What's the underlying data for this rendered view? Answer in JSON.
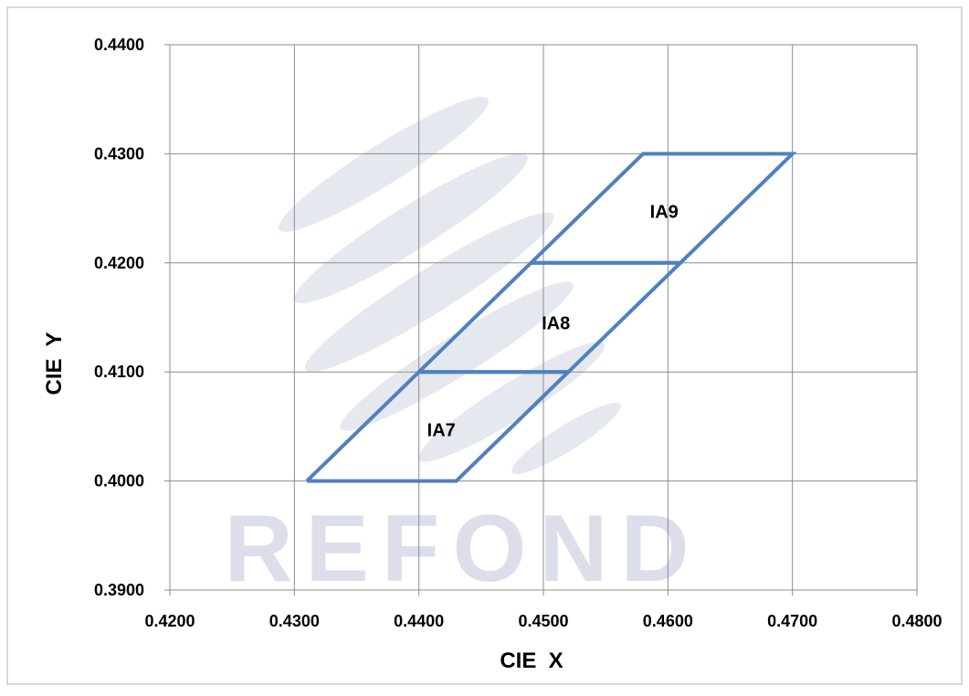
{
  "chart_data": {
    "type": "line",
    "xlabel": "CIE  X",
    "ylabel": "CIE  Y",
    "xlim": [
      0.42,
      0.48
    ],
    "ylim": [
      0.39,
      0.44
    ],
    "x_ticks": [
      "0.4200",
      "0.4300",
      "0.4400",
      "0.4500",
      "0.4600",
      "0.4700",
      "0.4800"
    ],
    "y_ticks": [
      "0.3900",
      "0.4000",
      "0.4100",
      "0.4200",
      "0.4300",
      "0.4400"
    ],
    "grid": true,
    "series_color": "#4F81BD",
    "series": [
      {
        "label": "IA7",
        "label_at": [
          0.4418,
          0.4047
        ],
        "points": [
          [
            0.431,
            0.4
          ],
          [
            0.443,
            0.4
          ],
          [
            0.452,
            0.41
          ],
          [
            0.44,
            0.41
          ],
          [
            0.431,
            0.4
          ]
        ]
      },
      {
        "label": "IA8",
        "label_at": [
          0.451,
          0.4145
        ],
        "points": [
          [
            0.44,
            0.41
          ],
          [
            0.452,
            0.41
          ],
          [
            0.461,
            0.42
          ],
          [
            0.449,
            0.42
          ],
          [
            0.44,
            0.41
          ]
        ]
      },
      {
        "label": "IA9",
        "label_at": [
          0.4597,
          0.4247
        ],
        "points": [
          [
            0.449,
            0.42
          ],
          [
            0.461,
            0.42
          ],
          [
            0.47,
            0.43
          ],
          [
            0.458,
            0.43
          ],
          [
            0.449,
            0.42
          ]
        ]
      }
    ]
  },
  "watermark": {
    "text": "REFOND",
    "color": "#d9dce8"
  }
}
